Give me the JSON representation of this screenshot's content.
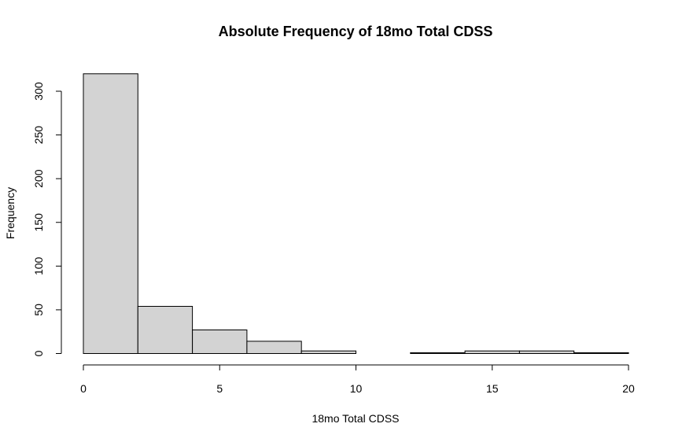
{
  "chart_data": {
    "type": "bar",
    "title": "Absolute Frequency of 18mo Total CDSS",
    "xlabel": "18mo Total CDSS",
    "ylabel": "Frequency",
    "bins": [
      {
        "start": 0,
        "end": 2,
        "value": 320
      },
      {
        "start": 2,
        "end": 4,
        "value": 54
      },
      {
        "start": 4,
        "end": 6,
        "value": 27
      },
      {
        "start": 6,
        "end": 8,
        "value": 14
      },
      {
        "start": 8,
        "end": 10,
        "value": 3
      },
      {
        "start": 10,
        "end": 12,
        "value": 0
      },
      {
        "start": 12,
        "end": 14,
        "value": 1
      },
      {
        "start": 14,
        "end": 16,
        "value": 3
      },
      {
        "start": 16,
        "end": 18,
        "value": 3
      },
      {
        "start": 18,
        "end": 20,
        "value": 1
      }
    ],
    "xlim": [
      0,
      20
    ],
    "ylim": [
      0,
      320
    ],
    "xticks": [
      "0",
      "5",
      "10",
      "15",
      "20"
    ],
    "yticks": [
      "0",
      "50",
      "100",
      "150",
      "200",
      "250",
      "300"
    ],
    "bar_color": "#d3d3d3",
    "grid": false
  }
}
